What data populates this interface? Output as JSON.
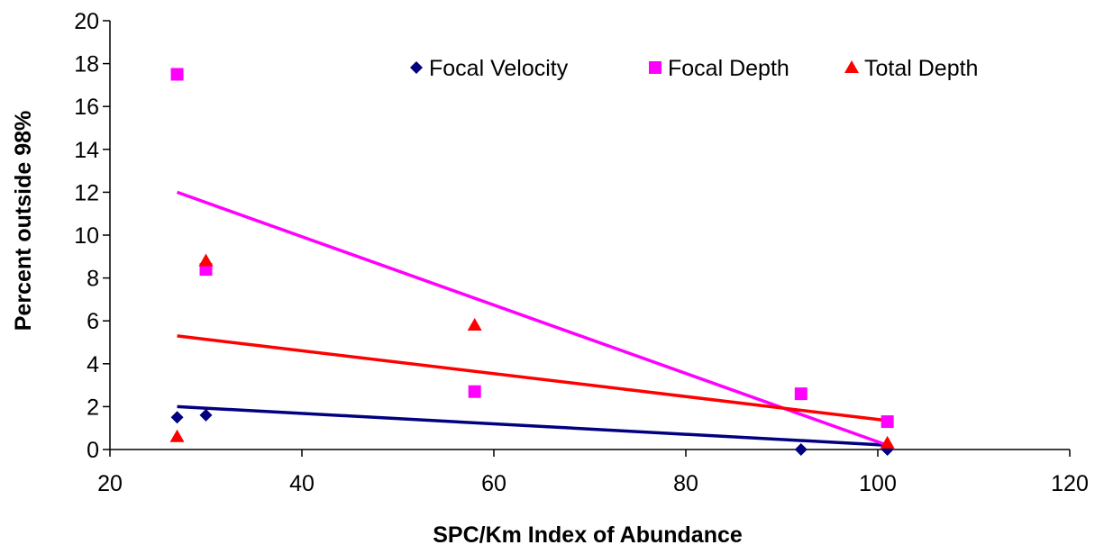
{
  "chart_data": {
    "type": "scatter",
    "title": "",
    "xlabel": "SPC/Km Index of Abundance",
    "ylabel": "Percent outside 98%",
    "xlim": [
      20,
      120
    ],
    "ylim": [
      0,
      20
    ],
    "x_ticks": [
      20,
      40,
      60,
      80,
      100,
      120
    ],
    "y_ticks": [
      0,
      2,
      4,
      6,
      8,
      10,
      12,
      14,
      16,
      18,
      20
    ],
    "grid": false,
    "legend_position": "top-right",
    "series": [
      {
        "name": "Focal Velocity",
        "marker": "diamond",
        "color": "#000080",
        "points": [
          [
            27,
            1.5
          ],
          [
            30,
            1.6
          ],
          [
            92,
            0.0
          ],
          [
            101,
            0.0
          ]
        ],
        "trendline": [
          [
            27,
            2.0
          ],
          [
            101,
            0.2
          ]
        ]
      },
      {
        "name": "Focal Depth",
        "marker": "square",
        "color": "#FF00FF",
        "points": [
          [
            27,
            17.5
          ],
          [
            30,
            8.4
          ],
          [
            58,
            2.7
          ],
          [
            92,
            2.6
          ],
          [
            101,
            1.3
          ]
        ],
        "trendline": [
          [
            27,
            12.0
          ],
          [
            101,
            0.2
          ]
        ]
      },
      {
        "name": "Total Depth",
        "marker": "triangle",
        "color": "#FF0000",
        "points": [
          [
            27,
            0.6
          ],
          [
            30,
            8.8
          ],
          [
            58,
            5.8
          ],
          [
            101,
            0.3
          ]
        ],
        "trendline": [
          [
            27,
            5.3
          ],
          [
            101,
            1.35
          ]
        ]
      }
    ]
  }
}
